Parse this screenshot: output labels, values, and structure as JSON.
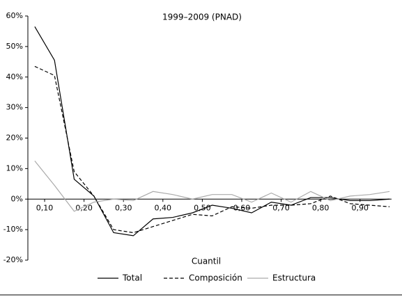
{
  "chart_data": {
    "type": "line",
    "title": "1999–2009 (PNAD)",
    "x_label": "Cuantil",
    "x": [
      0.075,
      0.125,
      0.175,
      0.225,
      0.275,
      0.325,
      0.375,
      0.425,
      0.475,
      0.525,
      0.575,
      0.625,
      0.675,
      0.725,
      0.775,
      0.825,
      0.875,
      0.925,
      0.975
    ],
    "series": [
      {
        "name": "Total",
        "color": "#000000",
        "dash": false,
        "values": [
          56.5,
          45.5,
          6.5,
          1,
          -11,
          -12,
          -6.5,
          -6,
          -4.5,
          -2,
          -3,
          -4.5,
          -1,
          -2,
          0.5,
          0.5,
          -0.5,
          -0.5,
          0
        ]
      },
      {
        "name": "Composición",
        "color": "#000000",
        "dash": true,
        "values": [
          43.5,
          40.5,
          9,
          1,
          -10,
          -11,
          -9,
          -7,
          -5,
          -5.5,
          -2.5,
          -3,
          -2,
          -2,
          -1.5,
          1,
          -1.5,
          -2,
          -2.5
        ]
      },
      {
        "name": "Estructura",
        "color": "#aaaaaa",
        "dash": false,
        "values": [
          12.5,
          4.5,
          -4,
          -1,
          0,
          -0.5,
          2.5,
          1.5,
          0,
          1.5,
          1.5,
          -1,
          2,
          -1,
          2.5,
          -0.5,
          1,
          1.5,
          2.5
        ]
      }
    ],
    "xlim": [
      0.0575,
      0.98
    ],
    "xticks": [
      {
        "value": 0.1,
        "label": "0,10"
      },
      {
        "value": 0.2,
        "label": "0,20"
      },
      {
        "value": 0.3,
        "label": "0,30"
      },
      {
        "value": 0.4,
        "label": "0,40"
      },
      {
        "value": 0.5,
        "label": "0,50"
      },
      {
        "value": 0.6,
        "label": "0,60"
      },
      {
        "value": 0.7,
        "label": "0,70"
      },
      {
        "value": 0.8,
        "label": "0,80"
      },
      {
        "value": 0.9,
        "label": "0,90"
      }
    ],
    "ylim": [
      -20,
      60
    ],
    "yticks": [
      {
        "value": -20,
        "label": "-20%"
      },
      {
        "value": -10,
        "label": "-10%"
      },
      {
        "value": 0,
        "label": "0%"
      },
      {
        "value": 10,
        "label": "10%"
      },
      {
        "value": 20,
        "label": "20%"
      },
      {
        "value": 30,
        "label": "30%"
      },
      {
        "value": 40,
        "label": "40%"
      },
      {
        "value": 50,
        "label": "50%"
      },
      {
        "value": 60,
        "label": "60%"
      }
    ]
  }
}
